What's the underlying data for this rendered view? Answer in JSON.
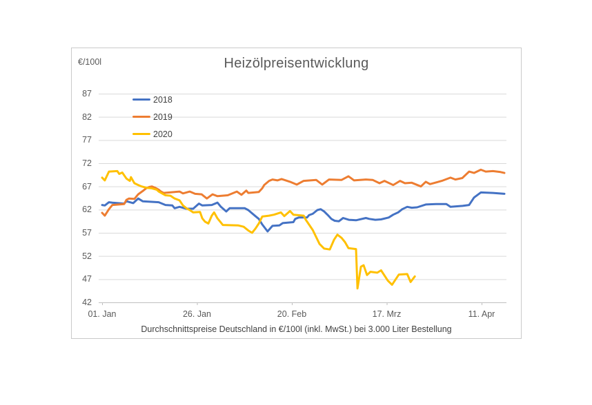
{
  "chart": {
    "title": "Heizölpreisentwicklung",
    "unit_label": "€/100l",
    "footnote": "Durchschnittspreise Deutschland in €/100l (inkl. MwSt.) bei 3.000 Liter Bestellung",
    "legend": [
      {
        "label": "2018",
        "color": "#4472C4"
      },
      {
        "label": "2019",
        "color": "#ED7D31"
      },
      {
        "label": "2020",
        "color": "#FFC000"
      }
    ],
    "colors": {
      "gridline": "#D9D9D9",
      "axis_line": "#BFBFBF",
      "text_axis": "#595959",
      "text_body": "#404040"
    }
  },
  "chart_data": {
    "type": "line",
    "title": "Heizölpreisentwicklung",
    "ylabel": "€/100l",
    "ylim": [
      42,
      87
    ],
    "yticks": [
      87,
      82,
      77,
      72,
      67,
      62,
      57,
      52,
      47,
      42
    ],
    "grid": "horizontal-only",
    "legend_position": "top-left-overlay",
    "x_unit": "days since 01. Jan",
    "xticks": [
      {
        "day": 0,
        "label": "01. Jan"
      },
      {
        "day": 25,
        "label": "26. Jan"
      },
      {
        "day": 50,
        "label": "20. Feb"
      },
      {
        "day": 75,
        "label": "17. Mrz"
      },
      {
        "day": 100,
        "label": "11. Apr"
      }
    ],
    "series": [
      {
        "name": "2018",
        "color": "#4472C4",
        "points": [
          [
            0,
            63
          ],
          [
            0.7,
            62.9
          ],
          [
            1.8,
            63.6
          ],
          [
            2.7,
            63.5
          ],
          [
            5.8,
            63.3
          ],
          [
            6.4,
            63.8
          ],
          [
            8.2,
            63.4
          ],
          [
            9.5,
            64.4
          ],
          [
            10.7,
            63.8
          ],
          [
            14.9,
            63.6
          ],
          [
            16.7,
            63
          ],
          [
            18.5,
            62.9
          ],
          [
            19.1,
            62.3
          ],
          [
            20.4,
            62.6
          ],
          [
            22.2,
            62.2
          ],
          [
            24,
            62.2
          ],
          [
            25.5,
            63.3
          ],
          [
            26.4,
            62.9
          ],
          [
            28.9,
            63
          ],
          [
            30.4,
            63.5
          ],
          [
            31.3,
            62.6
          ],
          [
            32.7,
            61.6
          ],
          [
            33.6,
            62.3
          ],
          [
            37.6,
            62.3
          ],
          [
            38.5,
            61.9
          ],
          [
            40.4,
            60.6
          ],
          [
            41.3,
            60
          ],
          [
            42.2,
            58.8
          ],
          [
            43.6,
            57.3
          ],
          [
            44.9,
            58.5
          ],
          [
            46.7,
            58.6
          ],
          [
            47.6,
            59.1
          ],
          [
            50.4,
            59.3
          ],
          [
            50.9,
            60
          ],
          [
            51.8,
            60.3
          ],
          [
            54,
            60.3
          ],
          [
            54.5,
            60.8
          ],
          [
            55.5,
            61.1
          ],
          [
            56.7,
            61.9
          ],
          [
            57.6,
            62.1
          ],
          [
            58.5,
            61.6
          ],
          [
            59.5,
            60.8
          ],
          [
            60.4,
            60
          ],
          [
            61.3,
            59.6
          ],
          [
            62.4,
            59.5
          ],
          [
            63.5,
            60.2
          ],
          [
            65,
            59.8
          ],
          [
            66.9,
            59.7
          ],
          [
            69.5,
            60.2
          ],
          [
            70.4,
            60
          ],
          [
            72,
            59.8
          ],
          [
            73.5,
            59.9
          ],
          [
            75.5,
            60.3
          ],
          [
            76.7,
            60.9
          ],
          [
            78,
            61.4
          ],
          [
            79.1,
            62.1
          ],
          [
            80.4,
            62.6
          ],
          [
            81.6,
            62.4
          ],
          [
            83,
            62.5
          ],
          [
            85.3,
            63.1
          ],
          [
            88,
            63.2
          ],
          [
            90.7,
            63.2
          ],
          [
            91.8,
            62.6
          ],
          [
            95,
            62.8
          ],
          [
            96.7,
            63
          ],
          [
            98,
            64.6
          ],
          [
            99.8,
            65.7
          ],
          [
            103,
            65.6
          ],
          [
            106,
            65.4
          ]
        ]
      },
      {
        "name": "2019",
        "color": "#ED7D31",
        "points": [
          [
            0,
            61.3
          ],
          [
            0.7,
            60.7
          ],
          [
            1.8,
            62.1
          ],
          [
            2.7,
            63
          ],
          [
            5.8,
            63.2
          ],
          [
            6.4,
            64.1
          ],
          [
            7.1,
            64.4
          ],
          [
            8.5,
            64.3
          ],
          [
            9.5,
            65.3
          ],
          [
            10.7,
            66
          ],
          [
            11.6,
            66.6
          ],
          [
            12.5,
            66.9
          ],
          [
            13.1,
            67
          ],
          [
            14,
            66.7
          ],
          [
            14.9,
            66.3
          ],
          [
            15.5,
            65.9
          ],
          [
            16.2,
            65.6
          ],
          [
            19.1,
            65.8
          ],
          [
            20.4,
            65.9
          ],
          [
            21.3,
            65.5
          ],
          [
            23.1,
            65.9
          ],
          [
            24.5,
            65.4
          ],
          [
            26.2,
            65.3
          ],
          [
            27.6,
            64.4
          ],
          [
            29.1,
            65.3
          ],
          [
            30.4,
            64.9
          ],
          [
            33.1,
            65.1
          ],
          [
            35.5,
            65.9
          ],
          [
            36.7,
            65.2
          ],
          [
            38,
            66.1
          ],
          [
            38.5,
            65.6
          ],
          [
            41.3,
            65.8
          ],
          [
            42.2,
            66.6
          ],
          [
            42.7,
            67.3
          ],
          [
            44,
            68.2
          ],
          [
            44.9,
            68.5
          ],
          [
            46.2,
            68.3
          ],
          [
            47.3,
            68.6
          ],
          [
            49.5,
            68
          ],
          [
            51.3,
            67.4
          ],
          [
            53.1,
            68.2
          ],
          [
            56.4,
            68.4
          ],
          [
            58,
            67.4
          ],
          [
            59.8,
            68.5
          ],
          [
            63.1,
            68.4
          ],
          [
            64.9,
            69.2
          ],
          [
            66.4,
            68.3
          ],
          [
            69.5,
            68.5
          ],
          [
            71.3,
            68.4
          ],
          [
            73.1,
            67.7
          ],
          [
            74.4,
            68.2
          ],
          [
            76.2,
            67.5
          ],
          [
            76.7,
            67.3
          ],
          [
            78.5,
            68.2
          ],
          [
            79.8,
            67.7
          ],
          [
            81.6,
            67.8
          ],
          [
            84,
            67
          ],
          [
            85.3,
            68
          ],
          [
            86.4,
            67.5
          ],
          [
            89.5,
            68.2
          ],
          [
            91.8,
            68.9
          ],
          [
            93.1,
            68.5
          ],
          [
            94.9,
            68.8
          ],
          [
            96.7,
            70.2
          ],
          [
            98,
            69.9
          ],
          [
            99.8,
            70.6
          ],
          [
            101.1,
            70.2
          ],
          [
            103,
            70.3
          ],
          [
            105,
            70.1
          ],
          [
            106,
            69.9
          ]
        ]
      },
      {
        "name": "2020",
        "color": "#FFC000",
        "points": [
          [
            0,
            68.9
          ],
          [
            0.7,
            68.3
          ],
          [
            1.8,
            70.2
          ],
          [
            4,
            70.3
          ],
          [
            4.5,
            69.7
          ],
          [
            5.3,
            70
          ],
          [
            6.4,
            68.7
          ],
          [
            7.3,
            68.2
          ],
          [
            7.6,
            69
          ],
          [
            8.5,
            67.7
          ],
          [
            9.5,
            67.3
          ],
          [
            10.4,
            67
          ],
          [
            11.8,
            66.7
          ],
          [
            13.1,
            66.6
          ],
          [
            14.4,
            66.3
          ],
          [
            14.9,
            65.9
          ],
          [
            16.2,
            65.3
          ],
          [
            16.7,
            65.1
          ],
          [
            18,
            65
          ],
          [
            19.1,
            64.4
          ],
          [
            20.4,
            64
          ],
          [
            21.3,
            62.9
          ],
          [
            22.2,
            62.3
          ],
          [
            23.1,
            61.9
          ],
          [
            24,
            61.4
          ],
          [
            25.8,
            61.5
          ],
          [
            26.4,
            60.1
          ],
          [
            27.1,
            59.4
          ],
          [
            28,
            59
          ],
          [
            28.9,
            60.7
          ],
          [
            29.5,
            61.4
          ],
          [
            30.4,
            60.1
          ],
          [
            31.3,
            59.2
          ],
          [
            31.8,
            58.7
          ],
          [
            35.8,
            58.6
          ],
          [
            37.3,
            58.3
          ],
          [
            38.5,
            57.5
          ],
          [
            39.5,
            57
          ],
          [
            40.4,
            57.9
          ],
          [
            41.3,
            59
          ],
          [
            42.2,
            60.5
          ],
          [
            44,
            60.7
          ],
          [
            45.3,
            60.9
          ],
          [
            47.1,
            61.4
          ],
          [
            48,
            60.6
          ],
          [
            49.5,
            61.7
          ],
          [
            50.4,
            60.9
          ],
          [
            53.1,
            60.7
          ],
          [
            53.6,
            59.9
          ],
          [
            54.5,
            58.8
          ],
          [
            55.5,
            57.6
          ],
          [
            56.4,
            56.1
          ],
          [
            57.3,
            54.6
          ],
          [
            58.5,
            53.6
          ],
          [
            60,
            53.4
          ],
          [
            61.1,
            55.5
          ],
          [
            62,
            56.6
          ],
          [
            63.1,
            55.9
          ],
          [
            64,
            55
          ],
          [
            64.9,
            53.7
          ],
          [
            66.9,
            53.5
          ],
          [
            67.3,
            45
          ],
          [
            68.2,
            49.7
          ],
          [
            68.9,
            50
          ],
          [
            69.8,
            47.9
          ],
          [
            70.7,
            48.6
          ],
          [
            72.5,
            48.4
          ],
          [
            73.5,
            48.9
          ],
          [
            75.3,
            46.7
          ],
          [
            76.4,
            45.8
          ],
          [
            78.2,
            48
          ],
          [
            80.4,
            48.1
          ],
          [
            81.3,
            46.4
          ],
          [
            82.4,
            47.6
          ]
        ]
      }
    ]
  }
}
